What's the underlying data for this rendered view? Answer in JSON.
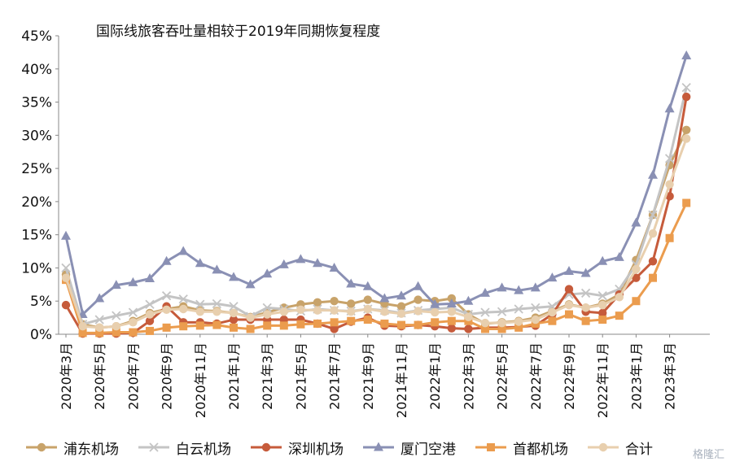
{
  "chart_data": {
    "type": "line",
    "title": "国际线旅客吞吐量相较于2019年同期恢复程度",
    "x": [
      "2020年3月",
      "2020年4月",
      "2020年5月",
      "2020年6月",
      "2020年7月",
      "2020年8月",
      "2020年9月",
      "2020年10月",
      "2020年11月",
      "2020年12月",
      "2021年1月",
      "2021年2月",
      "2021年3月",
      "2021年4月",
      "2021年5月",
      "2021年6月",
      "2021年7月",
      "2021年8月",
      "2021年9月",
      "2021年10月",
      "2021年11月",
      "2021年12月",
      "2022年1月",
      "2022年2月",
      "2022年3月",
      "2022年4月",
      "2022年5月",
      "2022年6月",
      "2022年7月",
      "2022年8月",
      "2022年9月",
      "2022年10月",
      "2022年11月",
      "2022年12月",
      "2023年1月",
      "2023年2月",
      "2023年3月",
      "2023年4月"
    ],
    "x_tick_labels": [
      "2020年3月",
      "2020年5月",
      "2020年7月",
      "2020年9月",
      "2020年11月",
      "2021年1月",
      "2021年3月",
      "2021年5月",
      "2021年7月",
      "2021年9月",
      "2021年11月",
      "2022年1月",
      "2022年3月",
      "2022年5月",
      "2022年7月",
      "2022年9月",
      "2022年11月",
      "2023年1月",
      "2023年3月"
    ],
    "ylim": [
      0,
      45
    ],
    "y_ticks": [
      "0%",
      "5%",
      "10%",
      "15%",
      "20%",
      "25%",
      "30%",
      "35%",
      "40%",
      "45%"
    ],
    "grid": false,
    "legend_position": "bottom",
    "series": [
      {
        "name": "浦东机场",
        "color": "#c8a36a",
        "marker": "circle",
        "values": [
          9,
          1.5,
          1,
          1.2,
          2,
          3.2,
          3.8,
          4.2,
          3.6,
          3.5,
          3.2,
          2.6,
          3.3,
          4,
          4.5,
          4.8,
          5,
          4.6,
          5.2,
          4.6,
          4.2,
          5.2,
          5,
          5.4,
          3,
          1.6,
          1.8,
          2,
          2.5,
          3.5,
          4.5,
          4,
          4.6,
          6,
          11.2,
          18,
          25.5,
          30.8
        ]
      },
      {
        "name": "白云机场",
        "color": "#c4c4c4",
        "marker": "x",
        "values": [
          10,
          1.5,
          2.2,
          2.8,
          3.3,
          4.5,
          5.8,
          5.3,
          4.5,
          4.6,
          4.2,
          2.7,
          4,
          3.8,
          3.5,
          3.8,
          3.6,
          3.5,
          3.8,
          3.6,
          3.2,
          3.6,
          3.8,
          4,
          3,
          3.3,
          3.4,
          3.8,
          4,
          4.2,
          6,
          6.2,
          5.8,
          6.8,
          10.5,
          18,
          26.5,
          37.2
        ]
      },
      {
        "name": "深圳机场",
        "color": "#c65b3b",
        "marker": "circle",
        "values": [
          4.4,
          0.1,
          0.1,
          0.1,
          0.2,
          2,
          4.2,
          1.8,
          1.8,
          1.6,
          2.2,
          2.2,
          2.2,
          2.2,
          2.2,
          1.6,
          0.8,
          1.9,
          2.5,
          1.3,
          1.2,
          1.4,
          1.2,
          0.9,
          0.8,
          1,
          1,
          1.1,
          1.3,
          3,
          6.8,
          3.4,
          3.2,
          6,
          8.5,
          11,
          20.8,
          35.8
        ]
      },
      {
        "name": "厦门空港",
        "color": "#8a90b4",
        "marker": "triangle",
        "values": [
          14.8,
          3,
          5.4,
          7.4,
          7.8,
          8.4,
          11,
          12.5,
          10.7,
          9.7,
          8.6,
          7.5,
          9.1,
          10.5,
          11.3,
          10.7,
          10,
          7.6,
          7.2,
          5.4,
          5.8,
          7.2,
          4.5,
          4.6,
          5,
          6.2,
          7,
          6.6,
          7,
          8.5,
          9.5,
          9.2,
          11,
          11.6,
          16.8,
          24,
          34,
          42
        ]
      },
      {
        "name": "首都机场",
        "color": "#eb9c4e",
        "marker": "square",
        "values": [
          8.2,
          0.2,
          0.2,
          0.3,
          0.3,
          0.5,
          1,
          1.2,
          1.3,
          1.4,
          1,
          0.8,
          1.3,
          1.3,
          1.5,
          1.6,
          1.8,
          2,
          2.2,
          1.6,
          1.4,
          1.4,
          1.8,
          2,
          2,
          0.8,
          0.8,
          1,
          1.6,
          2,
          3,
          2,
          2.2,
          2.8,
          5,
          8.5,
          14.5,
          19.8
        ]
      },
      {
        "name": "合计",
        "color": "#e8cfae",
        "marker": "circle",
        "values": [
          8.5,
          1.2,
          1,
          1.2,
          1.8,
          3,
          3.7,
          3.8,
          3.4,
          3.4,
          3.2,
          2.5,
          3,
          3.4,
          3.7,
          3.6,
          3.6,
          3.4,
          3.8,
          3.4,
          3.1,
          3.5,
          3.3,
          3.4,
          2.6,
          1.7,
          1.7,
          1.9,
          2.2,
          3.3,
          4.4,
          4,
          4.4,
          5.6,
          9.8,
          15.2,
          22.6,
          29.5
        ]
      }
    ]
  },
  "watermark": "格隆汇"
}
